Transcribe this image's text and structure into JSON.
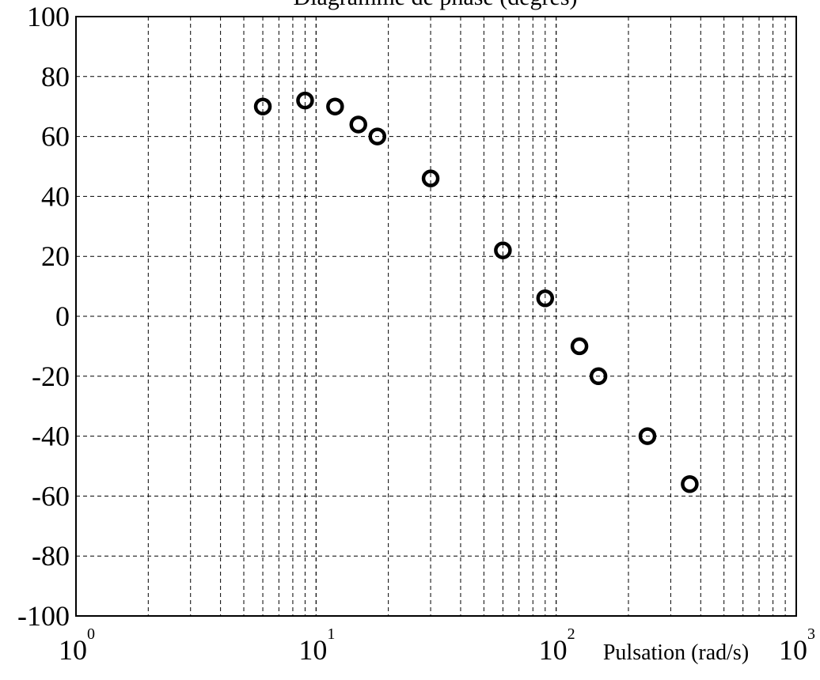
{
  "chart_data": {
    "type": "scatter",
    "title": "Diagramme de phase (degrés)",
    "xlabel": "Pulsation (rad/s)",
    "ylabel": "",
    "xscale": "log",
    "xlim": [
      1,
      1000
    ],
    "ylim": [
      -100,
      100
    ],
    "grid": true,
    "marker": "open-circle",
    "marker_color": "#000000",
    "x_ticks": [
      {
        "base": "10",
        "exp": "0"
      },
      {
        "base": "10",
        "exp": "1"
      },
      {
        "base": "10",
        "exp": "2"
      },
      {
        "base": "10",
        "exp": "3"
      }
    ],
    "y_ticks": [
      "100",
      "80",
      "60",
      "40",
      "20",
      "0",
      "-20",
      "-40",
      "-60",
      "-80",
      "-100"
    ],
    "x": [
      6.0,
      9.0,
      12.0,
      15.0,
      18.0,
      30.0,
      60.0,
      90.0,
      125.0,
      150.0,
      240.0,
      360.0
    ],
    "y": [
      70,
      72,
      70,
      64,
      60,
      46,
      22,
      6,
      -10,
      -20,
      -40,
      -56
    ]
  }
}
